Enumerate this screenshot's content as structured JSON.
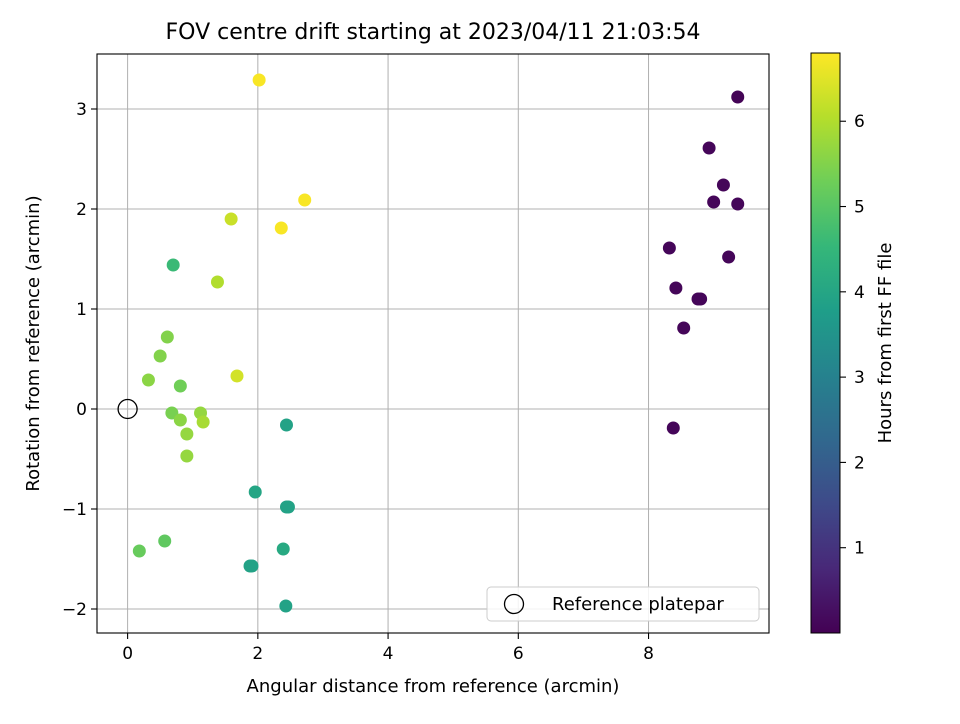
{
  "chart_data": {
    "type": "scatter",
    "title": "FOV centre drift starting at 2023/04/11 21:03:54",
    "xlabel": "Angular distance from reference (arcmin)",
    "ylabel": "Rotation from reference (arcmin)",
    "xlim": [
      -0.47,
      9.85
    ],
    "ylim": [
      -2.24,
      3.55
    ],
    "xticks": [
      0,
      2,
      4,
      6,
      8
    ],
    "yticks": [
      -2,
      -1,
      0,
      1,
      2,
      3
    ],
    "xtick_labels": [
      "0",
      "2",
      "4",
      "6",
      "8"
    ],
    "ytick_labels": [
      "−2",
      "−1",
      "0",
      "1",
      "2",
      "3"
    ],
    "grid": true,
    "legend": {
      "placement": "lower-right",
      "entries": [
        "Reference platepar"
      ]
    },
    "reference_point": {
      "x": 0,
      "y": 0
    },
    "colorbar": {
      "label": "Hours from first FF file",
      "min": 0.0,
      "max": 6.8,
      "ticks": [
        1,
        2,
        3,
        4,
        5,
        6
      ],
      "tick_labels": [
        "1",
        "2",
        "3",
        "4",
        "5",
        "6"
      ],
      "colormap": "viridis"
    },
    "points": [
      {
        "x": 9.37,
        "y": 3.12,
        "hours": 0.05
      },
      {
        "x": 8.93,
        "y": 2.61,
        "hours": 0.1
      },
      {
        "x": 9.15,
        "y": 2.24,
        "hours": 0.1
      },
      {
        "x": 9.0,
        "y": 2.07,
        "hours": 0.1
      },
      {
        "x": 9.37,
        "y": 2.05,
        "hours": 0.1
      },
      {
        "x": 8.32,
        "y": 1.61,
        "hours": 0.1
      },
      {
        "x": 9.23,
        "y": 1.52,
        "hours": 0.1
      },
      {
        "x": 8.42,
        "y": 1.21,
        "hours": 0.1
      },
      {
        "x": 8.76,
        "y": 1.1,
        "hours": 0.1
      },
      {
        "x": 8.8,
        "y": 1.1,
        "hours": 0.1
      },
      {
        "x": 8.54,
        "y": 0.81,
        "hours": 0.1
      },
      {
        "x": 8.38,
        "y": -0.19,
        "hours": 0.1
      },
      {
        "x": 2.44,
        "y": -0.16,
        "hours": 3.9
      },
      {
        "x": 1.96,
        "y": -0.83,
        "hours": 4.0
      },
      {
        "x": 2.44,
        "y": -0.98,
        "hours": 3.9
      },
      {
        "x": 2.47,
        "y": -0.98,
        "hours": 3.9
      },
      {
        "x": 1.88,
        "y": -1.57,
        "hours": 3.9
      },
      {
        "x": 1.91,
        "y": -1.57,
        "hours": 3.9
      },
      {
        "x": 2.39,
        "y": -1.4,
        "hours": 4.1
      },
      {
        "x": 2.43,
        "y": -1.97,
        "hours": 3.9
      },
      {
        "x": 0.7,
        "y": 1.44,
        "hours": 4.6
      },
      {
        "x": 0.18,
        "y": -1.42,
        "hours": 5.2
      },
      {
        "x": 0.57,
        "y": -1.32,
        "hours": 5.1
      },
      {
        "x": 0.61,
        "y": 0.72,
        "hours": 5.5
      },
      {
        "x": 0.5,
        "y": 0.53,
        "hours": 5.5
      },
      {
        "x": 0.32,
        "y": 0.29,
        "hours": 5.6
      },
      {
        "x": 0.81,
        "y": 0.23,
        "hours": 5.3
      },
      {
        "x": 0.68,
        "y": -0.04,
        "hours": 5.4
      },
      {
        "x": 0.81,
        "y": -0.11,
        "hours": 5.6
      },
      {
        "x": 0.91,
        "y": -0.25,
        "hours": 5.7
      },
      {
        "x": 0.91,
        "y": -0.47,
        "hours": 5.7
      },
      {
        "x": 1.12,
        "y": -0.04,
        "hours": 5.7
      },
      {
        "x": 1.16,
        "y": -0.13,
        "hours": 5.9
      },
      {
        "x": 1.38,
        "y": 1.27,
        "hours": 6.0
      },
      {
        "x": 1.59,
        "y": 1.9,
        "hours": 6.25
      },
      {
        "x": 1.68,
        "y": 0.33,
        "hours": 6.35
      },
      {
        "x": 2.02,
        "y": 3.29,
        "hours": 6.75
      },
      {
        "x": 2.36,
        "y": 1.81,
        "hours": 6.75
      },
      {
        "x": 2.72,
        "y": 2.09,
        "hours": 6.75
      }
    ]
  }
}
